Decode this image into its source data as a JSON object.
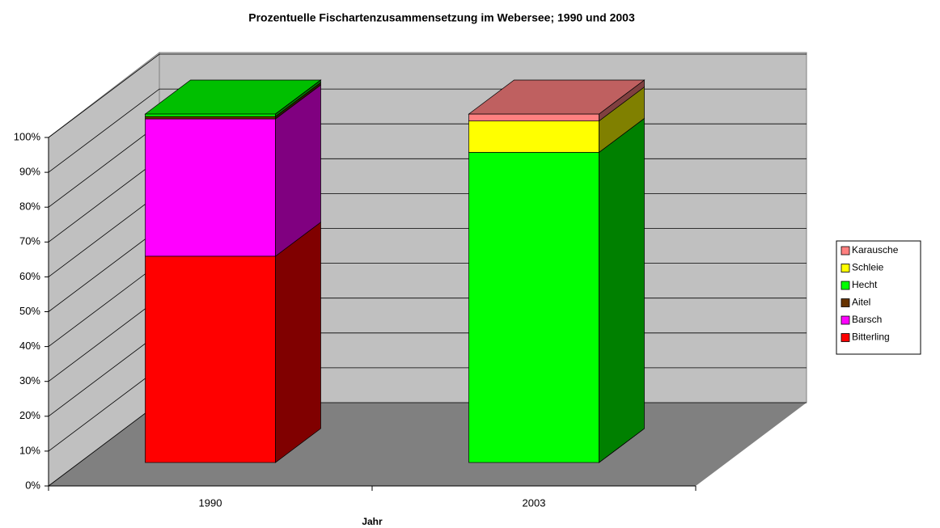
{
  "chart_data": {
    "type": "bar3d_stacked",
    "title": "Prozentuelle Fischartenzusammensetzung im Webersee; 1990 und 2003",
    "xlabel": "Jahr",
    "categories": [
      "1990",
      "2003"
    ],
    "series": [
      {
        "name": "Bitterling",
        "color": "#ff0000",
        "values": [
          59.2,
          0
        ]
      },
      {
        "name": "Barsch",
        "color": "#ff00ff",
        "values": [
          39.4,
          0
        ]
      },
      {
        "name": "Aitel",
        "color": "#663300",
        "values": [
          0.7,
          0
        ]
      },
      {
        "name": "Hecht",
        "color": "#00ff00",
        "values": [
          0.7,
          89
        ]
      },
      {
        "name": "Schleie",
        "color": "#ffff00",
        "values": [
          0,
          9
        ]
      },
      {
        "name": "Karausche",
        "color": "#ff8080",
        "values": [
          0,
          2
        ]
      }
    ],
    "ylim": [
      0,
      100
    ],
    "yticks": [
      {
        "value": 0,
        "label": "0%"
      },
      {
        "value": 10,
        "label": "10%"
      },
      {
        "value": 20,
        "label": "20%"
      },
      {
        "value": 30,
        "label": "30%"
      },
      {
        "value": 40,
        "label": "40%"
      },
      {
        "value": 50,
        "label": "50%"
      },
      {
        "value": 60,
        "label": "60%"
      },
      {
        "value": 70,
        "label": "70%"
      },
      {
        "value": 80,
        "label": "80%"
      },
      {
        "value": 90,
        "label": "90%"
      },
      {
        "value": 100,
        "label": "100%"
      }
    ],
    "grid": true,
    "legend": "right"
  }
}
